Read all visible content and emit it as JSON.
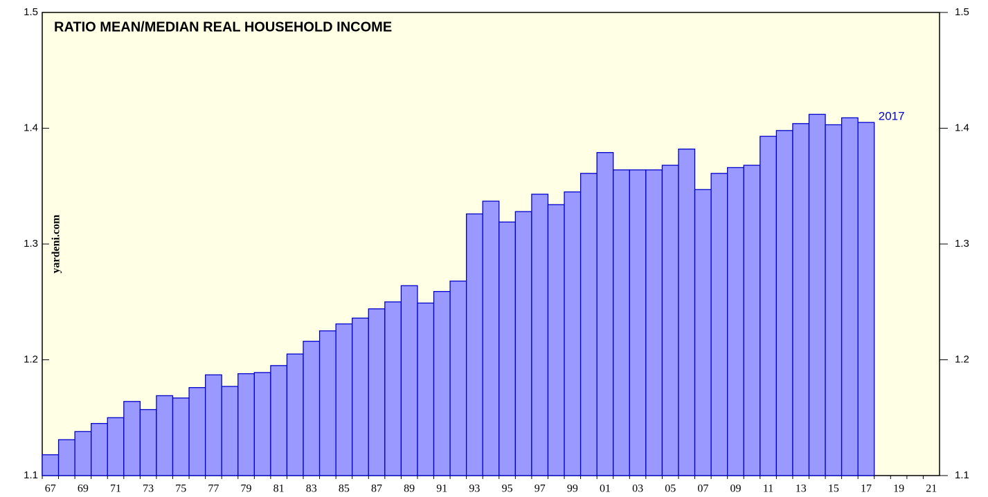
{
  "chart_data": {
    "type": "bar",
    "title": "RATIO MEAN/MEDIAN REAL HOUSEHOLD INCOME",
    "source": "yardeni.com",
    "annotation": "2017",
    "categories": [
      "67",
      null,
      "69",
      null,
      "71",
      null,
      "73",
      null,
      "75",
      null,
      "77",
      null,
      "79",
      null,
      "81",
      null,
      "83",
      null,
      "85",
      null,
      "87",
      null,
      "89",
      null,
      "91",
      null,
      "93",
      null,
      "95",
      null,
      "97",
      null,
      "99",
      null,
      "01",
      null,
      "03",
      null,
      "05",
      null,
      "07",
      null,
      "09",
      null,
      "11",
      null,
      "13",
      null,
      "15",
      null,
      "17",
      null,
      "19",
      null,
      "21"
    ],
    "values": [
      1.118,
      1.131,
      1.138,
      1.145,
      1.15,
      1.164,
      1.157,
      1.169,
      1.167,
      1.176,
      1.187,
      1.177,
      1.188,
      1.189,
      1.195,
      1.205,
      1.216,
      1.225,
      1.231,
      1.236,
      1.244,
      1.25,
      1.264,
      1.249,
      1.259,
      1.268,
      1.326,
      1.337,
      1.319,
      1.328,
      1.343,
      1.334,
      1.345,
      1.361,
      1.379,
      1.364,
      1.364,
      1.364,
      1.368,
      1.382,
      1.347,
      1.361,
      1.366,
      1.368,
      1.393,
      1.398,
      1.404,
      1.412,
      1.403,
      1.409,
      1.405,
      null,
      null,
      null,
      null
    ],
    "color": "#9999ff",
    "edge_color": "#0000cc",
    "ylim": [
      1.1,
      1.5
    ],
    "yticks": [
      1.1,
      1.2,
      1.3,
      1.4,
      1.5
    ]
  }
}
